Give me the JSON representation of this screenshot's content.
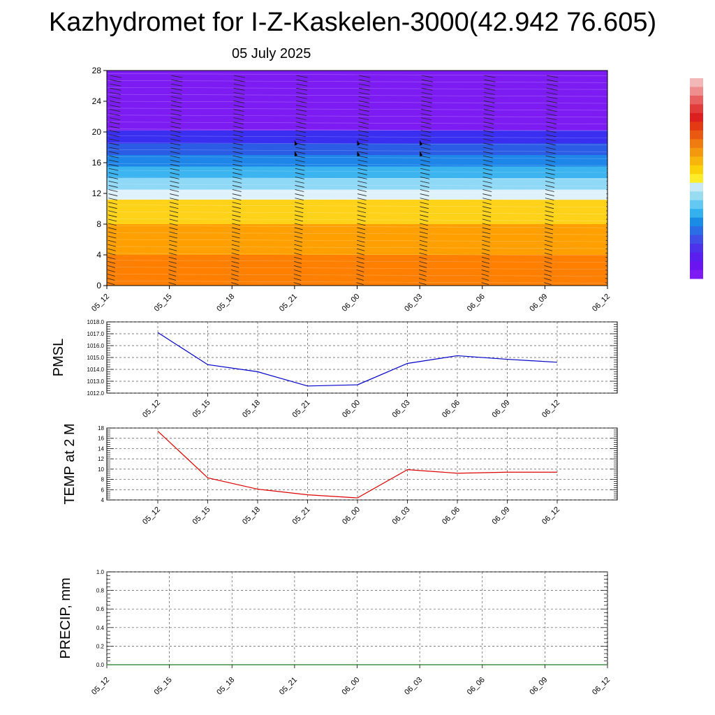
{
  "title": "Kazhydromet for I-Z-Kaskelen-3000(42.942 76.605)",
  "subtitle": "05 July 2025",
  "colorbar": {
    "colors": [
      "#f2b8b8",
      "#ee8e8e",
      "#e86060",
      "#e23b3b",
      "#dc1f1f",
      "#e33a14",
      "#ea5912",
      "#f07b10",
      "#f4980e",
      "#f8b60c",
      "#fbd20a",
      "#fdec2a",
      "#c7eaf6",
      "#98dcf2",
      "#63c8f2",
      "#33b0ee",
      "#1a8ce6",
      "#2a6de4",
      "#3f4ee6",
      "#4c32ea",
      "#5a1eee",
      "#6a14f0",
      "#7d1cf2"
    ]
  },
  "chart_data": [
    {
      "type": "heatmap",
      "title": "",
      "xlabel": "",
      "ylabel": "",
      "categories": [
        "05_12",
        "05_15",
        "05_18",
        "05_21",
        "06_00",
        "06_03",
        "06_06",
        "06_09",
        "06_12"
      ],
      "yticks": [
        "0",
        "4",
        "8",
        "12",
        "16",
        "20",
        "24",
        "28"
      ],
      "ylim": [
        0,
        28
      ],
      "temperature_bands": [
        {
          "from": 0,
          "to": 4,
          "color": "#ff7f00"
        },
        {
          "from": 4,
          "to": 8,
          "color": "#ffa000"
        },
        {
          "from": 8,
          "to": 11.2,
          "color": "#ffd21a"
        },
        {
          "from": 11.2,
          "to": 12.5,
          "color": "#dff2fb"
        },
        {
          "from": 12.5,
          "to": 14,
          "color": "#8fd8f6"
        },
        {
          "from": 14,
          "to": 15.5,
          "color": "#3bb4f0"
        },
        {
          "from": 15.5,
          "to": 17,
          "color": "#1e86e8"
        },
        {
          "from": 17,
          "to": 18.5,
          "color": "#2a5ce6"
        },
        {
          "from": 18.5,
          "to": 20.2,
          "color": "#3a2ff0"
        },
        {
          "from": 20.2,
          "to": 28,
          "color": "#7d1cf2"
        }
      ],
      "wind_barb_columns": [
        "05_12",
        "05_15",
        "05_18",
        "05_21",
        "06_00",
        "06_03",
        "06_06",
        "06_09",
        "06_12"
      ]
    },
    {
      "type": "line",
      "ylabel": "PMSL",
      "categories": [
        "05_12",
        "05_15",
        "05_18",
        "05_21",
        "06_00",
        "06_03",
        "06_06",
        "06_09",
        "06_12"
      ],
      "yticks": [
        "1012.0",
        "1013.0",
        "1014.0",
        "1015.0",
        "1016.0",
        "1017.0",
        "1018.0"
      ],
      "ylim": [
        1012,
        1018
      ],
      "series": [
        {
          "values": [
            1017.1,
            1014.4,
            1013.8,
            1012.6,
            1012.7,
            1014.5,
            1015.15,
            1014.85,
            1014.6
          ],
          "color": "#0000cc"
        }
      ]
    },
    {
      "type": "line",
      "ylabel": "TEMP at 2 M",
      "categories": [
        "05_12",
        "05_15",
        "05_18",
        "05_21",
        "06_00",
        "06_03",
        "06_06",
        "06_09",
        "06_12"
      ],
      "yticks": [
        "4",
        "6",
        "8",
        "10",
        "12",
        "14",
        "16",
        "18"
      ],
      "ylim": [
        4,
        18
      ],
      "series": [
        {
          "values": [
            17.4,
            8.3,
            6.1,
            5.0,
            4.4,
            9.9,
            9.2,
            9.4,
            9.4
          ],
          "color": "#e00000"
        }
      ]
    },
    {
      "type": "line",
      "ylabel": "PRECIP, mm",
      "categories": [
        "05_12",
        "05_15",
        "05_18",
        "05_21",
        "06_00",
        "06_03",
        "06_06",
        "06_09",
        "06_12"
      ],
      "yticks": [
        "0.0",
        "0.2",
        "0.4",
        "0.6",
        "0.8",
        "1.0"
      ],
      "ylim": [
        0,
        1
      ],
      "series": [
        {
          "values": [
            0,
            0,
            0,
            0,
            0,
            0,
            0,
            0,
            0
          ],
          "color": "#1a7a1a"
        }
      ]
    }
  ]
}
